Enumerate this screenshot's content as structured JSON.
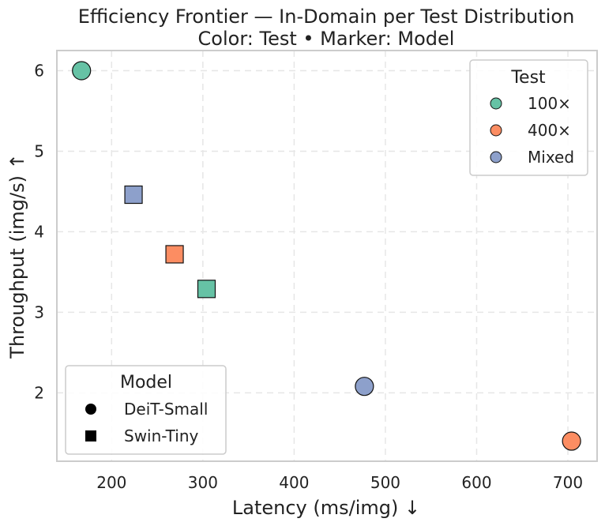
{
  "chart_data": {
    "type": "scatter",
    "title": "Efficiency Frontier — In-Domain per Test Distribution",
    "subtitle": "Color: Test • Marker: Model",
    "xlabel": "Latency (ms/img)  ↓",
    "ylabel": "Throughput (img/s)  ↑",
    "xlim": [
      140,
      732
    ],
    "ylim": [
      1.15,
      6.25
    ],
    "xticks": [
      200,
      300,
      400,
      500,
      600,
      700
    ],
    "yticks": [
      2,
      3,
      4,
      5,
      6
    ],
    "grid": true,
    "test_legend": {
      "title": "Test",
      "placement": "top-right",
      "entries": [
        {
          "label": "100×",
          "color": "#66c2a5"
        },
        {
          "label": "400×",
          "color": "#fc8d62"
        },
        {
          "label": "Mixed",
          "color": "#8da0cb"
        }
      ]
    },
    "model_legend": {
      "title": "Model",
      "placement": "bottom-left",
      "entries": [
        {
          "label": "DeiT-Small",
          "marker": "circle"
        },
        {
          "label": "Swin-Tiny",
          "marker": "square"
        }
      ]
    },
    "points": [
      {
        "model": "DeiT-Small",
        "test": "100×",
        "x": 167,
        "y": 6.0
      },
      {
        "model": "DeiT-Small",
        "test": "Mixed",
        "x": 477,
        "y": 2.08
      },
      {
        "model": "DeiT-Small",
        "test": "400×",
        "x": 704,
        "y": 1.4
      },
      {
        "model": "Swin-Tiny",
        "test": "Mixed",
        "x": 224,
        "y": 4.46
      },
      {
        "model": "Swin-Tiny",
        "test": "400×",
        "x": 269,
        "y": 3.72
      },
      {
        "model": "Swin-Tiny",
        "test": "100×",
        "x": 304,
        "y": 3.29
      }
    ]
  }
}
